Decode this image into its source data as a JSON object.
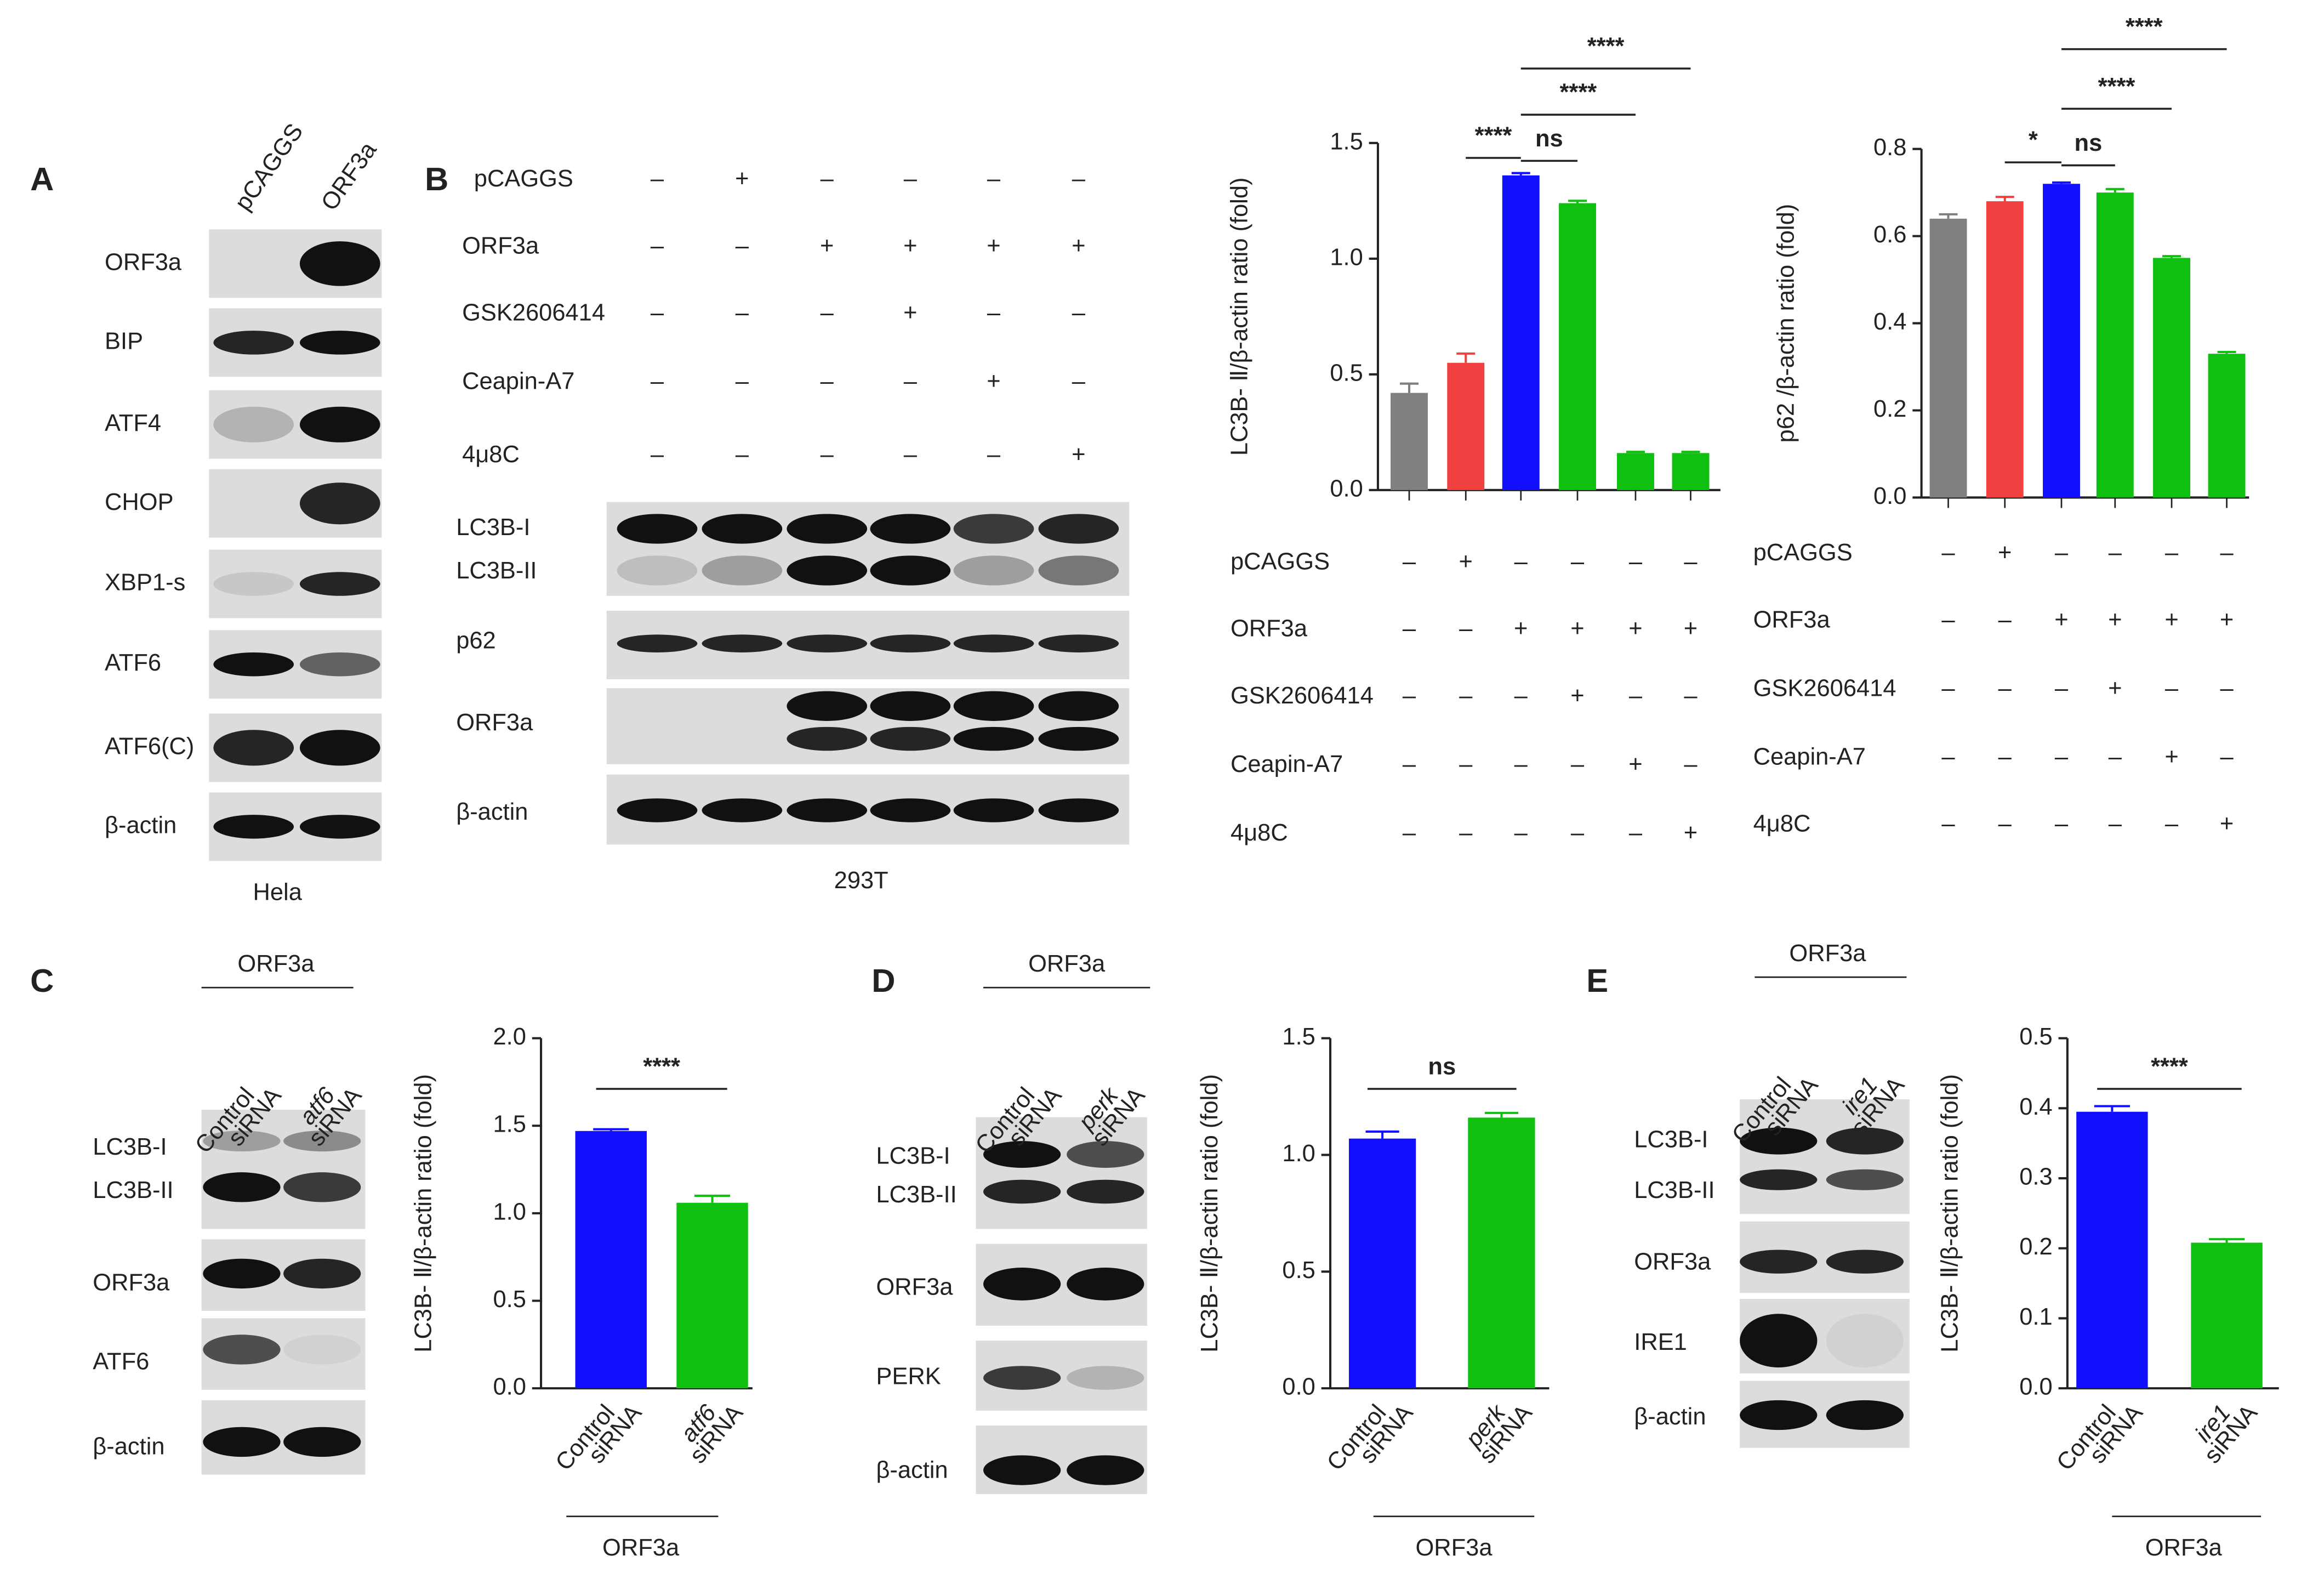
{
  "panel_letters": [
    "A",
    "B",
    "C",
    "D",
    "E"
  ],
  "blots": {
    "A": {
      "lanes": [
        "pCAGGS",
        "ORF3a"
      ],
      "rows": [
        "ORF3a",
        "BIP",
        "ATF4",
        "CHOP",
        "XBP1-s",
        "ATF6",
        "ATF6(C)",
        "β-actin"
      ],
      "cell_line": "Hela"
    },
    "B": {
      "treatments": [
        {
          "name": "pCAGGS",
          "signs": [
            "–",
            "+",
            "–",
            "–",
            "–",
            "–"
          ]
        },
        {
          "name": "ORF3a",
          "signs": [
            "–",
            "–",
            "+",
            "+",
            "+",
            "+"
          ]
        },
        {
          "name": "GSK2606414",
          "signs": [
            "–",
            "–",
            "–",
            "+",
            "–",
            "–"
          ]
        },
        {
          "name": "Ceapin-A7",
          "signs": [
            "–",
            "–",
            "–",
            "–",
            "+",
            "–"
          ]
        },
        {
          "name": "4μ8C",
          "signs": [
            "–",
            "–",
            "–",
            "–",
            "–",
            "+"
          ]
        }
      ],
      "rows": [
        "LC3B-I",
        "LC3B-II",
        "p62",
        "ORF3a",
        "β-actin"
      ],
      "cell_line": "293T"
    },
    "C": {
      "group": "ORF3a",
      "lanes": [
        [
          "Control",
          "siRNA"
        ],
        [
          "atf6",
          "siRNA"
        ]
      ],
      "rows": [
        "LC3B-I",
        "LC3B-II",
        "ORF3a",
        "ATF6",
        "β-actin"
      ]
    },
    "D": {
      "group": "ORF3a",
      "lanes": [
        [
          "Control",
          "siRNA"
        ],
        [
          "perk",
          "siRNA"
        ]
      ],
      "rows": [
        "LC3B-I",
        "LC3B-II",
        "ORF3a",
        "PERK",
        "β-actin"
      ]
    },
    "E": {
      "group": "ORF3a",
      "lanes": [
        [
          "Control",
          "siRNA"
        ],
        [
          "ire1",
          "siRNA"
        ]
      ],
      "rows": [
        "LC3B-I",
        "LC3B-II",
        "ORF3a",
        "IRE1",
        "β-actin"
      ]
    }
  },
  "chart_data": [
    {
      "type": "bar",
      "y_label": "LC3B- Ⅱ/β-actin ratio (fold)",
      "ylim": [
        0,
        1.5
      ],
      "yticks": [
        {
          "value": 0,
          "label": "0.0"
        },
        0.5,
        {
          "value": 1,
          "label": "1.0"
        },
        1.5
      ],
      "values": [
        0.42,
        0.55,
        1.36,
        1.24,
        0.16,
        0.16
      ],
      "errors": [
        0.04,
        0.04,
        0.01,
        0.01,
        0.005,
        0.005
      ],
      "colors": [
        "#808080",
        "#f04040",
        "#1010ff",
        "#10c010",
        "#10c010",
        "#10c010"
      ],
      "comparisons": [
        {
          "bars": [
            1,
            2
          ],
          "label": "****"
        },
        {
          "bars": [
            2,
            3
          ],
          "label": "ns"
        },
        {
          "bars": [
            2,
            4
          ],
          "label": "****"
        },
        {
          "bars": [
            2,
            5
          ],
          "label": "****"
        }
      ],
      "treatments": [
        {
          "name": "pCAGGS",
          "signs": [
            "–",
            "+",
            "–",
            "–",
            "–",
            "–"
          ]
        },
        {
          "name": "ORF3a",
          "signs": [
            "–",
            "–",
            "+",
            "+",
            "+",
            "+"
          ]
        },
        {
          "name": "GSK2606414",
          "signs": [
            "–",
            "–",
            "–",
            "+",
            "–",
            "–"
          ]
        },
        {
          "name": "Ceapin-A7",
          "signs": [
            "–",
            "–",
            "–",
            "–",
            "+",
            "–"
          ]
        },
        {
          "name": "4μ8C",
          "signs": [
            "–",
            "–",
            "–",
            "–",
            "–",
            "+"
          ]
        }
      ]
    },
    {
      "type": "bar",
      "y_label": "p62 /β-actin ratio (fold)",
      "ylim": [
        0,
        0.8
      ],
      "yticks": [
        {
          "value": 0,
          "label": "0.0"
        },
        0.2,
        0.4,
        0.6,
        0.8
      ],
      "values": [
        0.64,
        0.68,
        0.72,
        0.7,
        0.55,
        0.33
      ],
      "errors": [
        0.01,
        0.01,
        0.003,
        0.008,
        0.004,
        0.004
      ],
      "colors": [
        "#808080",
        "#f04040",
        "#1010ff",
        "#10c010",
        "#10c010",
        "#10c010"
      ],
      "comparisons": [
        {
          "bars": [
            1,
            2
          ],
          "label": "*"
        },
        {
          "bars": [
            2,
            3
          ],
          "label": "ns"
        },
        {
          "bars": [
            2,
            4
          ],
          "label": "****"
        },
        {
          "bars": [
            2,
            5
          ],
          "label": "****"
        }
      ],
      "treatments": [
        {
          "name": "pCAGGS",
          "signs": [
            "–",
            "+",
            "–",
            "–",
            "–",
            "–"
          ]
        },
        {
          "name": "ORF3a",
          "signs": [
            "–",
            "–",
            "+",
            "+",
            "+",
            "+"
          ]
        },
        {
          "name": "GSK2606414",
          "signs": [
            "–",
            "–",
            "–",
            "+",
            "–",
            "–"
          ]
        },
        {
          "name": "Ceapin-A7",
          "signs": [
            "–",
            "–",
            "–",
            "–",
            "+",
            "–"
          ]
        },
        {
          "name": "4μ8C",
          "signs": [
            "–",
            "–",
            "–",
            "–",
            "–",
            "+"
          ]
        }
      ]
    },
    {
      "type": "bar",
      "y_label": "LC3B- Ⅱ/β-actin ratio (fold)",
      "ylim": [
        0,
        2
      ],
      "yticks": [
        {
          "value": 0,
          "label": "0.0"
        },
        0.5,
        {
          "value": 1,
          "label": "1.0"
        },
        1.5,
        {
          "value": 2,
          "label": "2.0"
        }
      ],
      "values": [
        1.47,
        1.06
      ],
      "errors": [
        0.01,
        0.04
      ],
      "colors": [
        "#1010ff",
        "#10c010"
      ],
      "comparisons": [
        {
          "bars": [
            0,
            1
          ],
          "label": "****"
        }
      ],
      "categories": [
        [
          "Control",
          "siRNA"
        ],
        [
          "atf6",
          "siRNA"
        ]
      ],
      "group": "ORF3a"
    },
    {
      "type": "bar",
      "y_label": "LC3B- Ⅱ/β-actin ratio (fold)",
      "ylim": [
        0,
        1.5
      ],
      "yticks": [
        {
          "value": 0,
          "label": "0.0"
        },
        0.5,
        {
          "value": 1,
          "label": "1.0"
        },
        1.5
      ],
      "values": [
        1.07,
        1.16
      ],
      "errors": [
        0.03,
        0.02
      ],
      "colors": [
        "#1010ff",
        "#10c010"
      ],
      "comparisons": [
        {
          "bars": [
            0,
            1
          ],
          "label": "ns"
        }
      ],
      "categories": [
        [
          "Control",
          "siRNA"
        ],
        [
          "perk",
          "siRNA"
        ]
      ],
      "group": "ORF3a"
    },
    {
      "type": "bar",
      "y_label": "LC3B- Ⅱ/β-actin ratio (fold)",
      "ylim": [
        0,
        0.5
      ],
      "yticks": [
        {
          "value": 0,
          "label": "0.0"
        },
        0.1,
        0.2,
        0.3,
        0.4,
        0.5
      ],
      "values": [
        0.395,
        0.208
      ],
      "errors": [
        0.008,
        0.005
      ],
      "colors": [
        "#1010ff",
        "#10c010"
      ],
      "comparisons": [
        {
          "bars": [
            0,
            1
          ],
          "label": "****"
        }
      ],
      "categories": [
        [
          "Control",
          "siRNA"
        ],
        [
          "ire1",
          "siRNA"
        ]
      ],
      "group": "ORF3a"
    }
  ]
}
